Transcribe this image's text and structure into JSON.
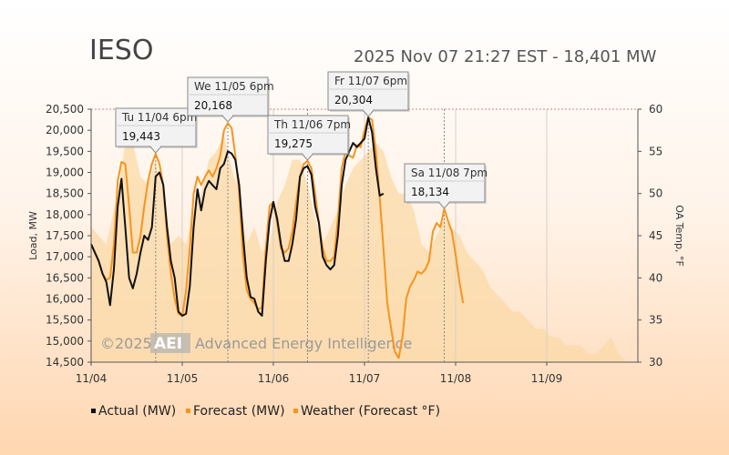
{
  "header": {
    "title": "IESO",
    "status": "2025 Nov 07 21:27 EST - 18,401 MW"
  },
  "watermark": {
    "copyright": "©2025",
    "logo": "AEI",
    "company": "Advanced Energy Intelligence"
  },
  "colors": {
    "actual": "#111111",
    "forecast": "#f7941d",
    "weather": "#fbd9a7",
    "highlight": "#cc1111"
  },
  "chart_data": {
    "type": "line",
    "xlabel": "",
    "ylabel": "Load, MW",
    "y2label": "OA Temp, °F",
    "ylim": [
      14500,
      20500
    ],
    "y2lim": [
      30,
      60
    ],
    "xlim": [
      0,
      144
    ],
    "x_ticks": [
      {
        "x": 0,
        "label": "11/04"
      },
      {
        "x": 24,
        "label": "11/05"
      },
      {
        "x": 48,
        "label": "11/06"
      },
      {
        "x": 72,
        "label": "11/07"
      },
      {
        "x": 96,
        "label": "11/08"
      },
      {
        "x": 120,
        "label": "11/09"
      }
    ],
    "y_ticks": [
      "14,500",
      "15,000",
      "15,500",
      "16,000",
      "16,500",
      "17,000",
      "17,500",
      "18,000",
      "18,500",
      "19,000",
      "19,500",
      "20,000",
      "20,500"
    ],
    "y2_ticks": [
      "30",
      "35",
      "40",
      "45",
      "50",
      "55",
      "60"
    ],
    "legend": [
      "Actual (MW)",
      "Forecast (MW)",
      "Weather (Forecast °F)"
    ],
    "legend_position": "bottom-left",
    "series": [
      {
        "name": "Actual (MW)",
        "points": [
          [
            0,
            17300
          ],
          [
            2,
            16900
          ],
          [
            3,
            16600
          ],
          [
            4,
            16400
          ],
          [
            5,
            15850
          ],
          [
            6,
            16700
          ],
          [
            7,
            18200
          ],
          [
            8,
            18850
          ],
          [
            9,
            17700
          ],
          [
            10,
            16500
          ],
          [
            11,
            16250
          ],
          [
            12,
            16600
          ],
          [
            13,
            17100
          ],
          [
            14,
            17500
          ],
          [
            15,
            17400
          ],
          [
            16,
            17700
          ],
          [
            17,
            18900
          ],
          [
            18,
            19000
          ],
          [
            19,
            18700
          ],
          [
            20,
            17700
          ],
          [
            21,
            16900
          ],
          [
            22,
            16500
          ],
          [
            23,
            15700
          ],
          [
            24,
            15600
          ],
          [
            25,
            15650
          ],
          [
            26,
            16300
          ],
          [
            27,
            17700
          ],
          [
            28,
            18600
          ],
          [
            29,
            18100
          ],
          [
            30,
            18600
          ],
          [
            31,
            18800
          ],
          [
            32,
            18700
          ],
          [
            33,
            18600
          ],
          [
            34,
            19100
          ],
          [
            35,
            19200
          ],
          [
            36,
            19500
          ],
          [
            37,
            19450
          ],
          [
            38,
            19300
          ],
          [
            39,
            18700
          ],
          [
            40,
            17500
          ],
          [
            41,
            16500
          ],
          [
            42,
            16050
          ],
          [
            43,
            16000
          ],
          [
            44,
            15700
          ],
          [
            45,
            15600
          ],
          [
            46,
            16900
          ],
          [
            47,
            17850
          ],
          [
            48,
            18300
          ],
          [
            49,
            17900
          ],
          [
            50,
            17300
          ],
          [
            51,
            16900
          ],
          [
            52,
            16900
          ],
          [
            53,
            17300
          ],
          [
            54,
            17900
          ],
          [
            55,
            18900
          ],
          [
            56,
            19100
          ],
          [
            57,
            19150
          ],
          [
            58,
            18950
          ],
          [
            59,
            18200
          ],
          [
            60,
            17800
          ],
          [
            61,
            17000
          ],
          [
            62,
            16800
          ],
          [
            63,
            16700
          ],
          [
            64,
            16800
          ],
          [
            65,
            17500
          ],
          [
            66,
            18700
          ],
          [
            67,
            19300
          ],
          [
            68,
            19500
          ],
          [
            69,
            19700
          ],
          [
            70,
            19600
          ],
          [
            71,
            19700
          ],
          [
            72,
            19800
          ],
          [
            73,
            20304
          ],
          [
            74,
            19950
          ],
          [
            75,
            19100
          ],
          [
            76,
            18450
          ],
          [
            77,
            18500
          ]
        ]
      },
      {
        "name": "Forecast (MW)",
        "points": [
          [
            0,
            17300
          ],
          [
            2,
            16900
          ],
          [
            3,
            16600
          ],
          [
            4,
            16450
          ],
          [
            5,
            16500
          ],
          [
            6,
            17300
          ],
          [
            7,
            18800
          ],
          [
            8,
            19250
          ],
          [
            9,
            19200
          ],
          [
            10,
            18200
          ],
          [
            11,
            17100
          ],
          [
            12,
            17100
          ],
          [
            13,
            17500
          ],
          [
            14,
            18200
          ],
          [
            15,
            18800
          ],
          [
            16,
            19200
          ],
          [
            17,
            19443
          ],
          [
            18,
            19200
          ],
          [
            19,
            18700
          ],
          [
            20,
            17500
          ],
          [
            21,
            16600
          ],
          [
            22,
            16000
          ],
          [
            23,
            15650
          ],
          [
            24,
            15600
          ],
          [
            25,
            16200
          ],
          [
            26,
            17200
          ],
          [
            27,
            18500
          ],
          [
            28,
            18900
          ],
          [
            29,
            18700
          ],
          [
            30,
            18900
          ],
          [
            31,
            19050
          ],
          [
            32,
            18900
          ],
          [
            33,
            19100
          ],
          [
            34,
            19400
          ],
          [
            35,
            20000
          ],
          [
            36,
            20168
          ],
          [
            37,
            20050
          ],
          [
            38,
            19400
          ],
          [
            39,
            18500
          ],
          [
            40,
            17000
          ],
          [
            41,
            16200
          ],
          [
            42,
            16000
          ],
          [
            43,
            15900
          ],
          [
            44,
            15750
          ],
          [
            45,
            15800
          ],
          [
            46,
            17200
          ],
          [
            47,
            18200
          ],
          [
            48,
            18300
          ],
          [
            49,
            17800
          ],
          [
            50,
            17200
          ],
          [
            51,
            17100
          ],
          [
            52,
            17200
          ],
          [
            53,
            17600
          ],
          [
            54,
            18300
          ],
          [
            55,
            18900
          ],
          [
            56,
            19200
          ],
          [
            57,
            19275
          ],
          [
            58,
            19100
          ],
          [
            59,
            18500
          ],
          [
            60,
            17800
          ],
          [
            61,
            17200
          ],
          [
            62,
            16900
          ],
          [
            63,
            16900
          ],
          [
            64,
            17000
          ],
          [
            65,
            17900
          ],
          [
            66,
            19100
          ],
          [
            67,
            19500
          ],
          [
            68,
            19400
          ],
          [
            69,
            19350
          ],
          [
            70,
            19650
          ],
          [
            71,
            19600
          ],
          [
            72,
            20000
          ],
          [
            73,
            20304
          ],
          [
            74,
            20250
          ],
          [
            75,
            19500
          ],
          [
            76,
            18400
          ],
          [
            77,
            17200
          ],
          [
            78,
            15900
          ],
          [
            79,
            15300
          ],
          [
            80,
            14750
          ],
          [
            81,
            14600
          ],
          [
            82,
            15100
          ],
          [
            83,
            16000
          ],
          [
            84,
            16300
          ],
          [
            85,
            16450
          ],
          [
            86,
            16650
          ],
          [
            87,
            16600
          ],
          [
            88,
            16700
          ],
          [
            89,
            16900
          ],
          [
            90,
            17600
          ],
          [
            91,
            17800
          ],
          [
            92,
            17700
          ],
          [
            93,
            18134
          ],
          [
            94,
            17850
          ],
          [
            95,
            17600
          ],
          [
            96,
            17050
          ],
          [
            97,
            16400
          ],
          [
            98,
            15900
          ]
        ]
      },
      {
        "name": "Weather (Forecast °F)",
        "points": [
          [
            0,
            46
          ],
          [
            4,
            44
          ],
          [
            7,
            50
          ],
          [
            9,
            56
          ],
          [
            11,
            56
          ],
          [
            13,
            52
          ],
          [
            15,
            51
          ],
          [
            17,
            54
          ],
          [
            19,
            50
          ],
          [
            21,
            44
          ],
          [
            23,
            45
          ],
          [
            25,
            44
          ],
          [
            27,
            48
          ],
          [
            29,
            50
          ],
          [
            31,
            54
          ],
          [
            33,
            55
          ],
          [
            35,
            57
          ],
          [
            37,
            53
          ],
          [
            39,
            50
          ],
          [
            41,
            44
          ],
          [
            43,
            46
          ],
          [
            45,
            43
          ],
          [
            47,
            44
          ],
          [
            49,
            49
          ],
          [
            51,
            51
          ],
          [
            53,
            54
          ],
          [
            55,
            54
          ],
          [
            57,
            51
          ],
          [
            59,
            47
          ],
          [
            61,
            44
          ],
          [
            63,
            46
          ],
          [
            65,
            48
          ],
          [
            67,
            51
          ],
          [
            69,
            53
          ],
          [
            71,
            54
          ],
          [
            73,
            55
          ],
          [
            75,
            56
          ],
          [
            77,
            55
          ],
          [
            79,
            52
          ],
          [
            81,
            50
          ],
          [
            83,
            50
          ],
          [
            85,
            48
          ],
          [
            87,
            44
          ],
          [
            89,
            43
          ],
          [
            91,
            45
          ],
          [
            93,
            47
          ],
          [
            95,
            46
          ],
          [
            97,
            45
          ],
          [
            99,
            43
          ],
          [
            101,
            42
          ],
          [
            103,
            41
          ],
          [
            105,
            39
          ],
          [
            107,
            38
          ],
          [
            109,
            37
          ],
          [
            111,
            36
          ],
          [
            113,
            36
          ],
          [
            115,
            35
          ],
          [
            117,
            34
          ],
          [
            119,
            34
          ],
          [
            121,
            33
          ],
          [
            123,
            33
          ],
          [
            125,
            32
          ],
          [
            127,
            32
          ],
          [
            129,
            32
          ],
          [
            131,
            31
          ],
          [
            133,
            31
          ],
          [
            135,
            32
          ],
          [
            137,
            33
          ],
          [
            139,
            31
          ],
          [
            141,
            30
          ],
          [
            144,
            30
          ]
        ]
      }
    ],
    "annotations": [
      {
        "day": "Tu 11/04 6pm",
        "value": "19,443",
        "x": 17,
        "y": 19443,
        "highlight": false
      },
      {
        "day": "We 11/05 6pm",
        "value": "20,168",
        "x": 36,
        "y": 20168,
        "highlight": false
      },
      {
        "day": "Th 11/06 7pm",
        "value": "19,275",
        "x": 57,
        "y": 19275,
        "highlight": false
      },
      {
        "day": "Fr 11/07 6pm",
        "value": "20,304",
        "x": 73,
        "y": 20304,
        "highlight": true
      },
      {
        "day": "Sa 11/08 7pm",
        "value": "18,134",
        "x": 93,
        "y": 18134,
        "highlight": false
      }
    ]
  }
}
